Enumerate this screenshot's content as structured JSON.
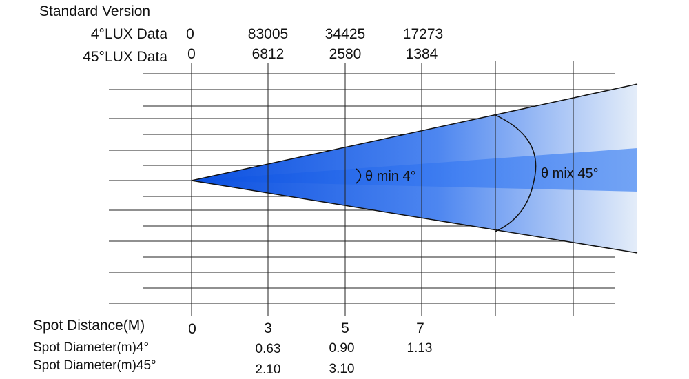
{
  "title": "Standard Version",
  "rows": {
    "lux4_label": "4°LUX Data",
    "lux45_label": "45°LUX Data",
    "distance_label": "Spot Distance(M)",
    "diam4_label": "Spot Diameter(m)4°",
    "diam45_label": "Spot Diameter(m)45°"
  },
  "columns": [
    {
      "distance": "0",
      "lux4": "0",
      "lux45": "0",
      "diam4": "",
      "diam45": ""
    },
    {
      "distance": "3",
      "lux4": "83005",
      "lux45": "6812",
      "diam4": "0.63",
      "diam45": "2.10"
    },
    {
      "distance": "5",
      "lux4": "34425",
      "lux45": "2580",
      "diam4": "0.90",
      "diam45": "3.10"
    },
    {
      "distance": "7",
      "lux4": "17273",
      "lux45": "1384",
      "diam4": "1.13",
      "diam45": ""
    }
  ],
  "beam": {
    "narrow_angle_label": "θ min 4°",
    "wide_angle_label": "θ mix 45°",
    "color_dark": "#0a4fe0",
    "color_mid": "#4d86f0",
    "color_light": "#e4edf9"
  }
}
